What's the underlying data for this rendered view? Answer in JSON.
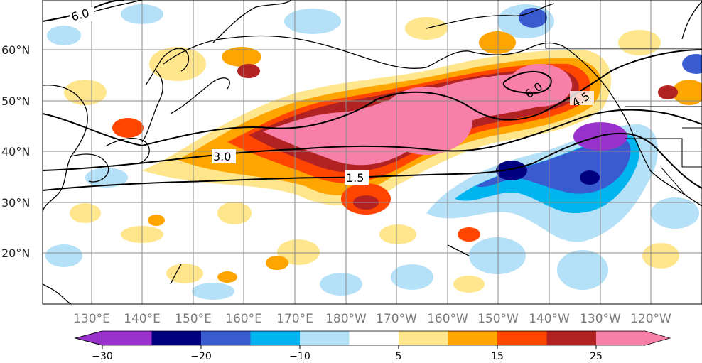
{
  "map": {
    "lat_labels": [
      "60°N",
      "50°N",
      "40°N",
      "30°N",
      "20°N"
    ],
    "lon_labels": [
      "130°E",
      "140°E",
      "150°E",
      "160°E",
      "170°E",
      "180°W",
      "170°W",
      "160°W",
      "150°W",
      "140°W",
      "130°W",
      "120°W"
    ],
    "contour_labels": [
      "6.0",
      "3.0",
      "1.5",
      "6.0",
      "4.5"
    ]
  },
  "colorbar": {
    "colors": [
      "#9932cc",
      "#000080",
      "#3a5bd0",
      "#00b4f0",
      "#b4e0f8",
      "#ffffff",
      "#ffe68c",
      "#ffa500",
      "#ff4500",
      "#b22222",
      "#f77fa8"
    ],
    "tick_labels": [
      "−30",
      "−20",
      "−10",
      "5",
      "15",
      "25"
    ]
  }
}
